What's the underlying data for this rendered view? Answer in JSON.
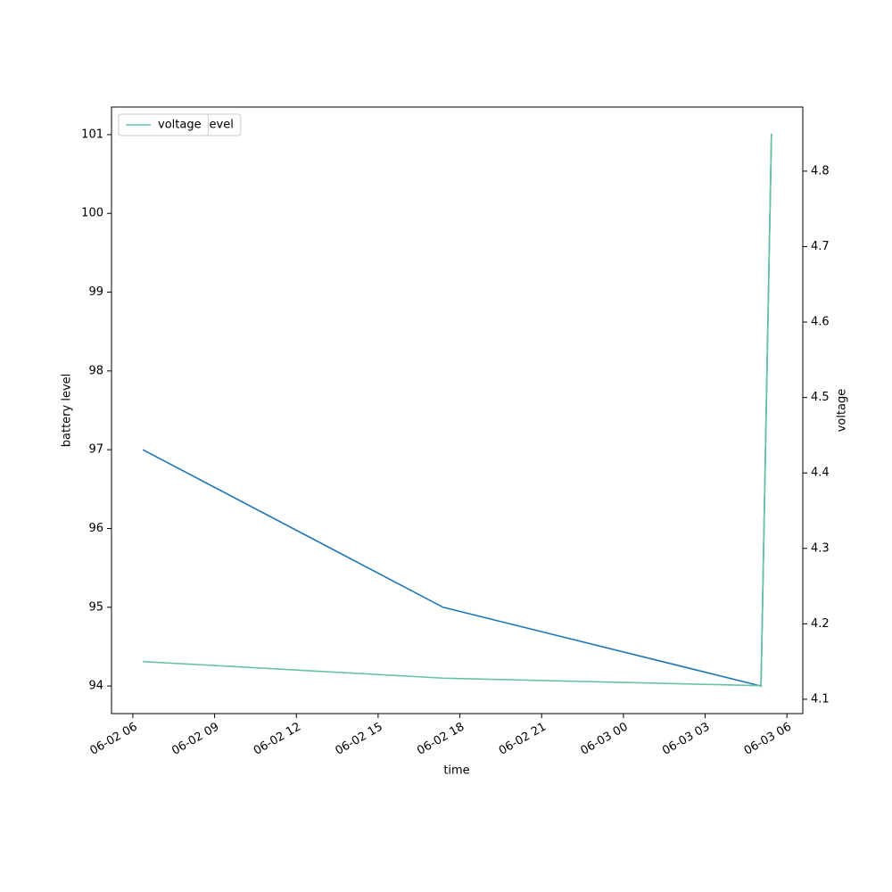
{
  "chart_data": {
    "type": "line",
    "x": [
      "06-02 06:22",
      "06-02 17:23",
      "06-03 05:03",
      "06-03 05:26"
    ],
    "xlabel": "time",
    "ylabel": "battery level",
    "y2label": "voltage",
    "series": [
      {
        "name": "battery_level",
        "color": "#1f77b4",
        "values": [
          97,
          95,
          94,
          101
        ]
      },
      {
        "name": "voltage",
        "color": "#66c2a5",
        "axis": "y2",
        "values": [
          4.15,
          4.128,
          4.118,
          4.85
        ]
      }
    ],
    "xlim": [
      "06-02 05:13",
      "06-03 06:35"
    ],
    "xticks": [
      "06-02 06",
      "06-02 09",
      "06-02 12",
      "06-02 15",
      "06-02 18",
      "06-02 21",
      "06-03 00",
      "06-03 03",
      "06-03 06"
    ],
    "ylim": [
      93.65,
      101.35
    ],
    "yticks": [
      94,
      95,
      96,
      97,
      98,
      99,
      100,
      101
    ],
    "y2lim": [
      4.081,
      4.885
    ],
    "y2ticks": [
      4.1,
      4.2,
      4.3,
      4.4,
      4.5,
      4.6,
      4.7,
      4.8
    ],
    "legend": "upper left"
  }
}
